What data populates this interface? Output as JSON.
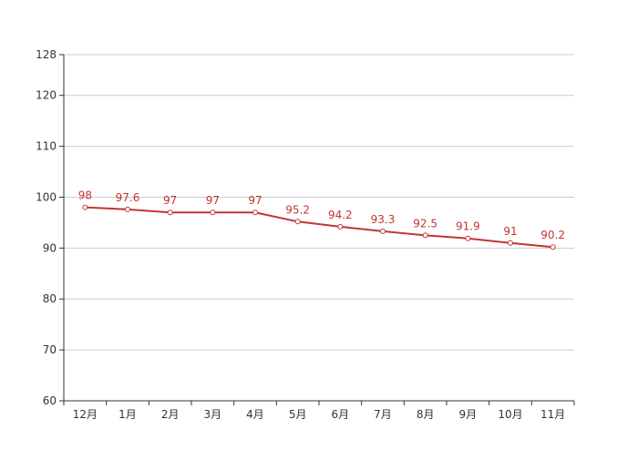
{
  "chart_data": {
    "type": "line",
    "categories": [
      "12月",
      "1月",
      "2月",
      "3月",
      "4月",
      "5月",
      "6月",
      "7月",
      "8月",
      "9月",
      "10月",
      "11月"
    ],
    "series": [
      {
        "values": [
          98,
          97.6,
          97,
          97,
          97,
          95.2,
          94.2,
          93.3,
          92.5,
          91.9,
          91,
          90.2
        ]
      }
    ],
    "data_labels": [
      "98",
      "97.6",
      "97",
      "97",
      "97",
      "95.2",
      "94.2",
      "93.3",
      "92.5",
      "91.9",
      "91",
      "90.2"
    ],
    "y_ticks": [
      60,
      70,
      80,
      90,
      100,
      110,
      120,
      128
    ],
    "ylim": [
      60,
      128
    ],
    "grid": "horizontal",
    "title": "",
    "xlabel": "",
    "ylabel": "",
    "colors": {
      "line": "#c23531",
      "grid": "#cccccc",
      "axis": "#333333",
      "point_fill": "#ffffff"
    }
  }
}
